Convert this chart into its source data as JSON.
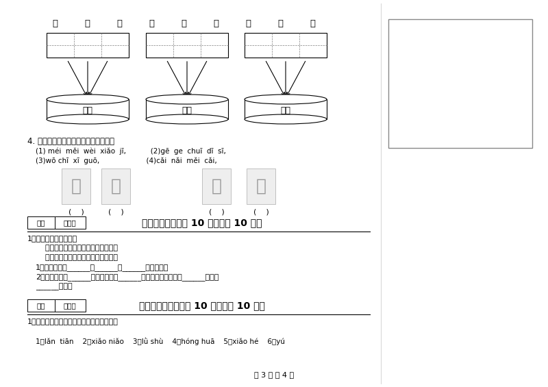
{
  "bg_color": "#ffffff",
  "page_text": "第 3 页 共 4 页",
  "section3_chars": [
    "子",
    "无",
    "目",
    "也",
    "出",
    "公",
    "长",
    "头",
    "马"
  ],
  "section4_title": "4. 拼一拼，将相应的序号写在括号里。",
  "section4_line1": "(1) méi  měi  wèi  xiǎo  jī,           (2)gē  ge  chuī  dī  sī,",
  "section4_line2": "(3)wō chī  xī  guō,                     (4)cǎi  nǎi  měi  cǎi,",
  "section7_title": "七、阅读题（每题 10 分，共计 10 分）",
  "section7_scoring_a": "得分",
  "section7_scoring_b": "评卷人",
  "section7_q": "1、阅读一下，再回答。",
  "section7_text1": "    太阳大，地球小，地球绕着太阳跑。",
  "section7_text2": "    地球大，月亮小，月亮绕着地球跑。",
  "section7_q1": "1、儿歌中说了______，______，______三种星球。",
  "section7_q2": "2、太阳比地球______，地球比月亮______，在这三个星球中，______最大，",
  "section7_q2b": "______最小。",
  "section8_title": "八、看图作答（每题 10 分，共计 10 分）",
  "section8_scoring_a": "得分",
  "section8_scoring_b": "评卷人",
  "section8_q": "1、请你画一幅画，图上要有以下几样东西。",
  "section8_items": "1、lǎn  tiān    2、xiǎo niǎo    3、lǜ shù    4、hóng huā    5、xiǎo hé    6、yú"
}
